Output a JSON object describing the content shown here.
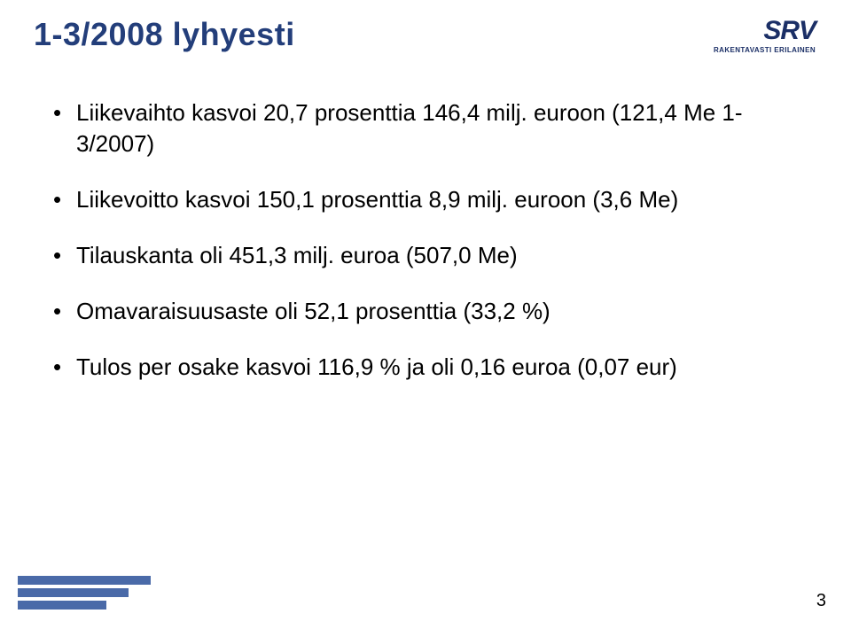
{
  "colors": {
    "title_color": "#233e7a",
    "body_color": "#000000",
    "logo_color": "#1b2f66",
    "logo_tag_color": "#1b2f66",
    "bar_color": "#4a6aa8",
    "pagenum_color": "#000000"
  },
  "title": "1-3/2008 lyhyesti",
  "logo": {
    "main": "SRV",
    "tagline": "RAKENTAVASTI ERILAINEN"
  },
  "bullets": [
    "Liikevaihto kasvoi 20,7 prosenttia 146,4 milj. euroon (121,4 Me 1-3/2007)",
    "Liikevoitto kasvoi 150,1 prosenttia 8,9 milj. euroon (3,6 Me)",
    "Tilauskanta oli 451,3 milj. euroa (507,0 Me)",
    "Omavaraisuusaste oli 52,1 prosenttia (33,2 %)",
    "Tulos per osake kasvoi 116,9 % ja oli 0,16 euroa (0,07 eur)"
  ],
  "footer_bars": {
    "widths": [
      150,
      125,
      100
    ],
    "height": 10,
    "gap": 4
  },
  "page_number": "3",
  "typography": {
    "title_fontsize": 36,
    "title_fontweight": "bold",
    "body_fontsize": 26,
    "logo_main_fontsize": 30,
    "logo_tag_fontsize": 8,
    "pagenum_fontsize": 20
  }
}
